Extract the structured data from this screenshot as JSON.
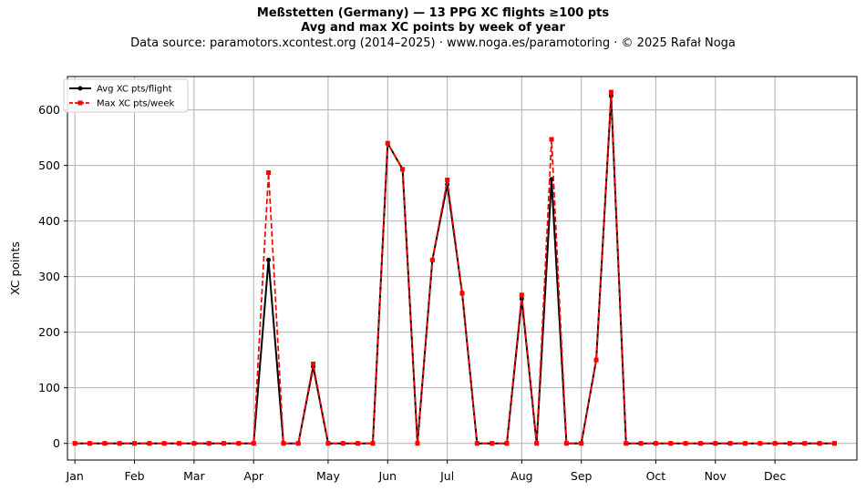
{
  "header": {
    "title_line1": "Meßstetten (Germany)  —  13 PPG XC flights ≥100 pts",
    "title_line2": "Avg and max XC points by week of year",
    "source_line": "Data source: paramotors.xcontest.org (2014–2025)  ·  www.noga.es/paramotoring  ·  © 2025 Rafał Noga"
  },
  "colors": {
    "avg": "#000000",
    "max": "#ff0000",
    "grid": "#b0b0b0"
  },
  "chart_data": {
    "type": "line",
    "title": "Meßstetten (Germany)  —  13 PPG XC flights ≥100 pts",
    "subtitle": "Avg and max XC points by week of year",
    "xlabel": "",
    "ylabel": "XC points",
    "xlim": [
      0.5,
      53.5
    ],
    "ylim": [
      -30,
      660
    ],
    "x_ticks": [
      {
        "label": "Jan",
        "week": 1
      },
      {
        "label": "Feb",
        "week": 5
      },
      {
        "label": "Mar",
        "week": 9
      },
      {
        "label": "Apr",
        "week": 13
      },
      {
        "label": "May",
        "week": 18
      },
      {
        "label": "Jun",
        "week": 22
      },
      {
        "label": "Jul",
        "week": 26
      },
      {
        "label": "Aug",
        "week": 31
      },
      {
        "label": "Sep",
        "week": 35
      },
      {
        "label": "Oct",
        "week": 40
      },
      {
        "label": "Nov",
        "week": 44
      },
      {
        "label": "Dec",
        "week": 48
      }
    ],
    "y_ticks": [
      0,
      100,
      200,
      300,
      400,
      500,
      600
    ],
    "grid": true,
    "legend_position": "top-left",
    "x": [
      1,
      2,
      3,
      4,
      5,
      6,
      7,
      8,
      9,
      10,
      11,
      12,
      13,
      14,
      15,
      16,
      17,
      18,
      19,
      20,
      21,
      22,
      23,
      24,
      25,
      26,
      27,
      28,
      29,
      30,
      31,
      32,
      33,
      34,
      35,
      36,
      37,
      38,
      39,
      40,
      41,
      42,
      43,
      44,
      45,
      46,
      47,
      48,
      49,
      50,
      51,
      52
    ],
    "series": [
      {
        "name": "Avg XC pts/flight",
        "marker": "circle",
        "line_style": "solid",
        "values": [
          0,
          0,
          0,
          0,
          0,
          0,
          0,
          0,
          0,
          0,
          0,
          0,
          0,
          330,
          0,
          0,
          138,
          0,
          0,
          0,
          0,
          540,
          493,
          0,
          330,
          466,
          270,
          0,
          0,
          0,
          260,
          0,
          475,
          0,
          0,
          150,
          625,
          0,
          0,
          0,
          0,
          0,
          0,
          0,
          0,
          0,
          0,
          0,
          0,
          0,
          0,
          0
        ]
      },
      {
        "name": "Max XC pts/week",
        "marker": "square",
        "line_style": "dashed",
        "values": [
          0,
          0,
          0,
          0,
          0,
          0,
          0,
          0,
          0,
          0,
          0,
          0,
          0,
          487,
          0,
          0,
          143,
          0,
          0,
          0,
          0,
          540,
          493,
          0,
          330,
          474,
          270,
          0,
          0,
          0,
          267,
          0,
          547,
          0,
          0,
          150,
          632,
          0,
          0,
          0,
          0,
          0,
          0,
          0,
          0,
          0,
          0,
          0,
          0,
          0,
          0,
          0
        ]
      }
    ]
  }
}
